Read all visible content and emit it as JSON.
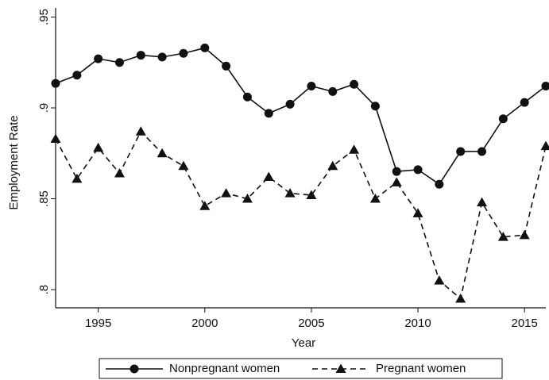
{
  "chart_data": {
    "type": "line",
    "x_label": "Year",
    "y_label": "Employment Rate",
    "x": [
      1993,
      1994,
      1995,
      1996,
      1997,
      1998,
      1999,
      2000,
      2001,
      2002,
      2003,
      2004,
      2005,
      2006,
      2007,
      2008,
      2009,
      2010,
      2011,
      2012,
      2013,
      2014,
      2015,
      2016
    ],
    "series": [
      {
        "name": "Nonpregnant women",
        "color": "#111111",
        "marker": "circle",
        "line_style": "solid",
        "values": [
          0.9135,
          0.918,
          0.927,
          0.925,
          0.929,
          0.928,
          0.93,
          0.933,
          0.923,
          0.906,
          0.897,
          0.902,
          0.912,
          0.909,
          0.913,
          0.901,
          0.865,
          0.866,
          0.858,
          0.876,
          0.876,
          0.894,
          0.903,
          0.912
        ]
      },
      {
        "name": "Pregnant women",
        "color": "#111111",
        "marker": "triangle",
        "line_style": "dashed",
        "values": [
          0.883,
          0.861,
          0.878,
          0.864,
          0.887,
          0.875,
          0.868,
          0.846,
          0.853,
          0.85,
          0.862,
          0.853,
          0.852,
          0.868,
          0.877,
          0.85,
          0.859,
          0.842,
          0.805,
          0.795,
          0.848,
          0.829,
          0.83,
          0.879
        ]
      }
    ],
    "xlim": [
      1993,
      2016
    ],
    "xticks": [
      1995,
      2000,
      2005,
      2010,
      2015
    ],
    "ylim": [
      0.79,
      0.955
    ],
    "yticks": [
      {
        "value": 0.8,
        "label": ".8"
      },
      {
        "value": 0.85,
        "label": ".85"
      },
      {
        "value": 0.9,
        "label": ".9"
      },
      {
        "value": 0.95,
        "label": ".95"
      }
    ],
    "grid": false,
    "legend": "bottom"
  }
}
